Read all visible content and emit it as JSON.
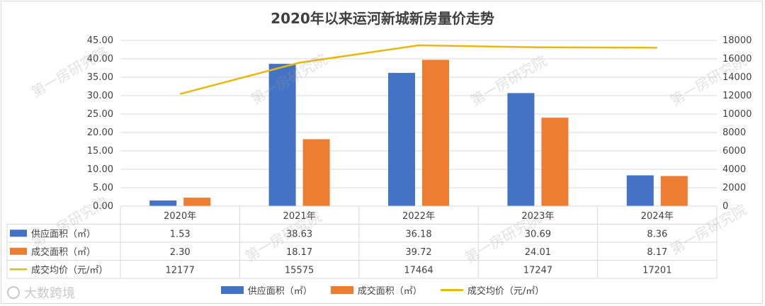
{
  "title": "2020年以来运河新城新房量价走势",
  "watermark_text": "第一房研究院",
  "brand_text": "大数跨境",
  "colors": {
    "supply": "#4472C4",
    "deal": "#ED7D31",
    "price": "#E8B812",
    "grid": "#d9d9d9",
    "text": "#404040"
  },
  "chart_data": {
    "type": "bar",
    "title": "2020年以来运河新城新房量价走势",
    "categories": [
      "2020年",
      "2021年",
      "2022年",
      "2023年",
      "2024年"
    ],
    "series": [
      {
        "name": "供应面积（㎡）",
        "type": "bar",
        "axis": "left",
        "values": [
          1.53,
          38.63,
          36.18,
          30.69,
          8.36
        ],
        "labels": [
          "1.53",
          "38.63",
          "36.18",
          "30.69",
          "8.36"
        ]
      },
      {
        "name": "成交面积（㎡）",
        "type": "bar",
        "axis": "left",
        "values": [
          2.3,
          18.17,
          39.72,
          24.01,
          8.17
        ],
        "labels": [
          "2.30",
          "18.17",
          "39.72",
          "24.01",
          "8.17"
        ]
      },
      {
        "name": "成交均价（元/㎡）",
        "type": "line",
        "axis": "right",
        "values": [
          12177,
          15575,
          17464,
          17247,
          17201
        ],
        "labels": [
          "12177",
          "15575",
          "17464",
          "17247",
          "17201"
        ]
      }
    ],
    "y_left": {
      "min": 0,
      "max": 45,
      "step": 5,
      "tick_labels": [
        "0.00",
        "5.00",
        "10.00",
        "15.00",
        "20.00",
        "25.00",
        "30.00",
        "35.00",
        "40.00",
        "45.00"
      ]
    },
    "y_right": {
      "min": 0,
      "max": 18000,
      "step": 2000,
      "tick_labels": [
        "0",
        "2000",
        "4000",
        "6000",
        "8000",
        "10000",
        "12000",
        "14000",
        "16000",
        "18000"
      ]
    },
    "data_table": true,
    "legend_position": "bottom",
    "grid": true
  }
}
